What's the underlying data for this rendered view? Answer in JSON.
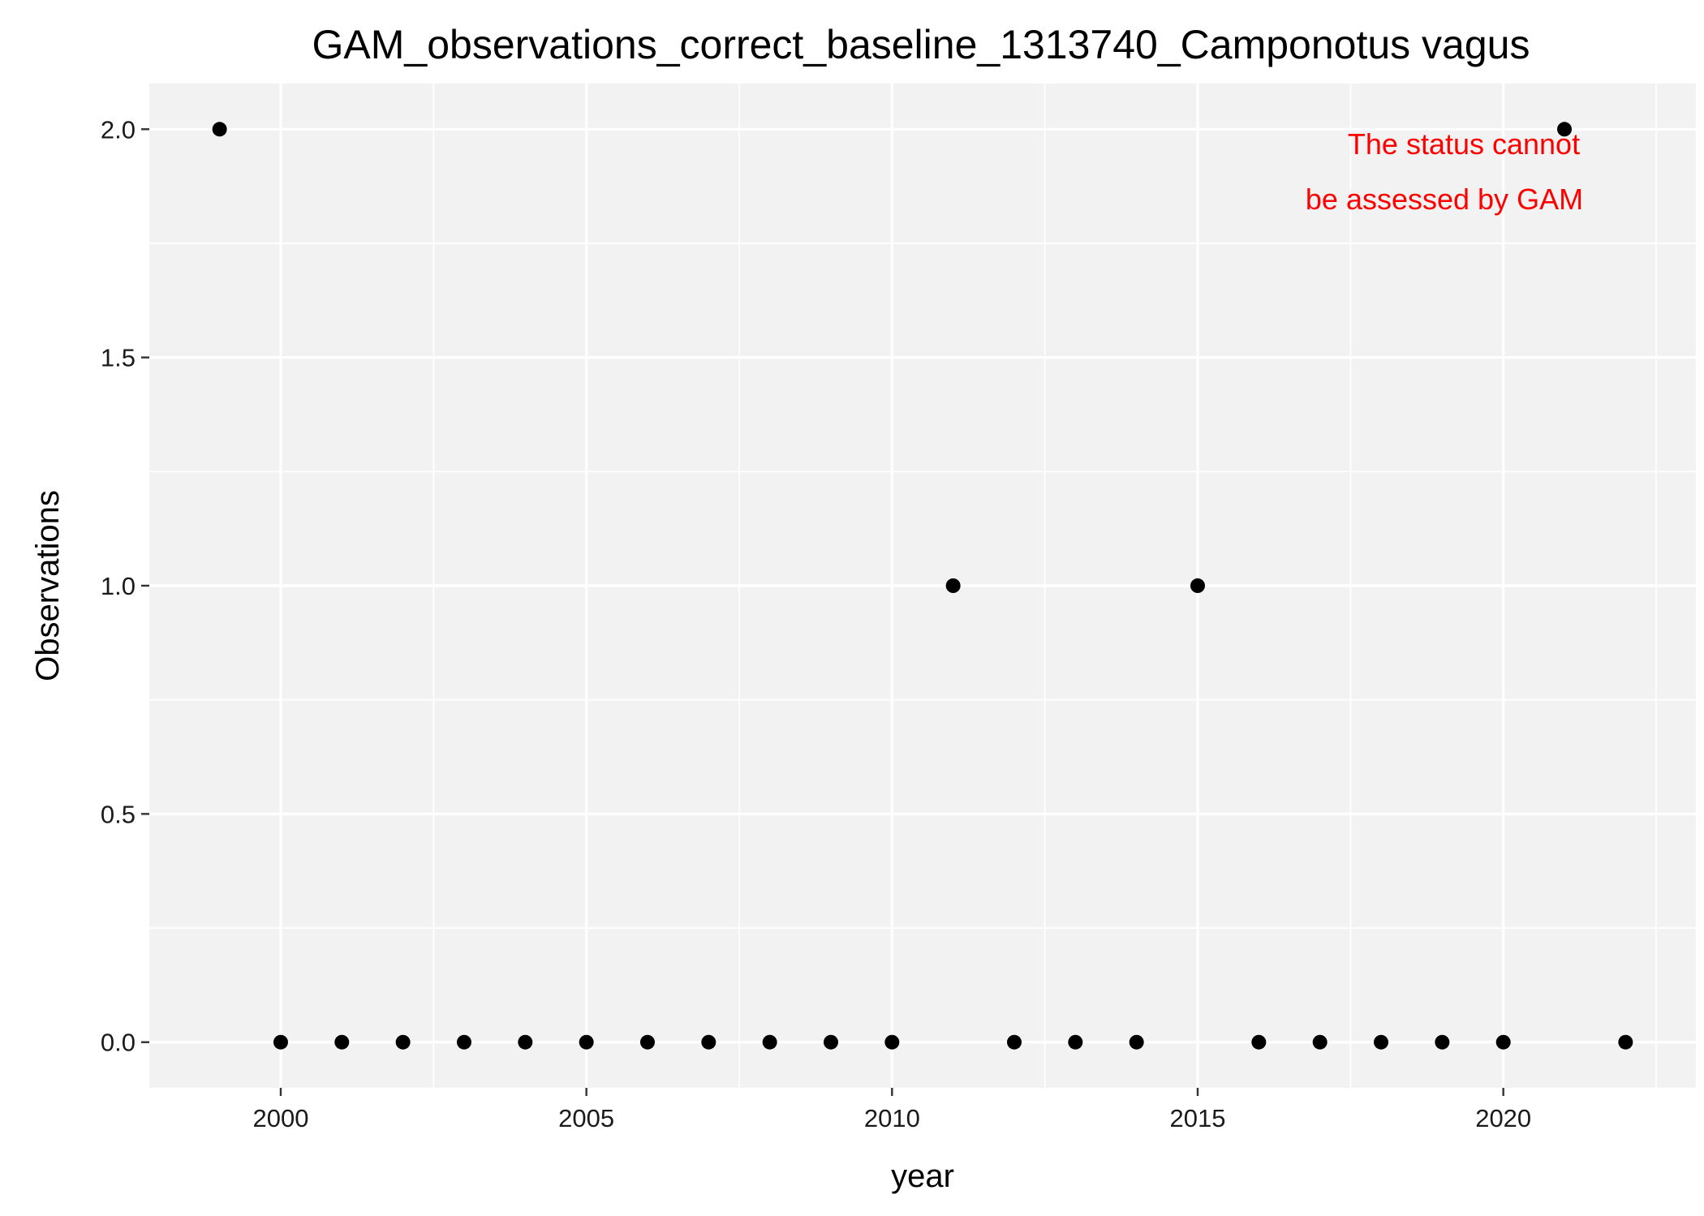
{
  "chart_data": {
    "type": "scatter",
    "title": "GAM_observations_correct_baseline_1313740_Camponotus vagus",
    "xlabel": "year",
    "ylabel": "Observations",
    "xlim": [
      1997.85,
      2023.15
    ],
    "ylim": [
      -0.1,
      2.1
    ],
    "x_ticks": [
      2000,
      2005,
      2010,
      2015,
      2020
    ],
    "x_tick_labels": [
      "2000",
      "2005",
      "2010",
      "2015",
      "2020"
    ],
    "y_ticks": [
      0.0,
      0.5,
      1.0,
      1.5,
      2.0
    ],
    "y_tick_labels": [
      "0.0",
      "0.5",
      "1.0",
      "1.5",
      "2.0"
    ],
    "grid": true,
    "legend": "none",
    "colors": {
      "panel_background": "#f2f2f2",
      "grid": "#ffffff",
      "point": "#000000",
      "annotation": "#ff0000"
    },
    "annotation": {
      "lines": [
        "The status cannot",
        "be assessed by GAM"
      ],
      "position": "top-right"
    },
    "x": [
      1999,
      2000,
      2001,
      2002,
      2003,
      2004,
      2005,
      2006,
      2007,
      2008,
      2009,
      2010,
      2011,
      2012,
      2013,
      2014,
      2015,
      2016,
      2017,
      2018,
      2019,
      2020,
      2021,
      2022
    ],
    "y": [
      2,
      0,
      0,
      0,
      0,
      0,
      0,
      0,
      0,
      0,
      0,
      0,
      1,
      0,
      0,
      0,
      1,
      0,
      0,
      0,
      0,
      0,
      2,
      0
    ]
  }
}
